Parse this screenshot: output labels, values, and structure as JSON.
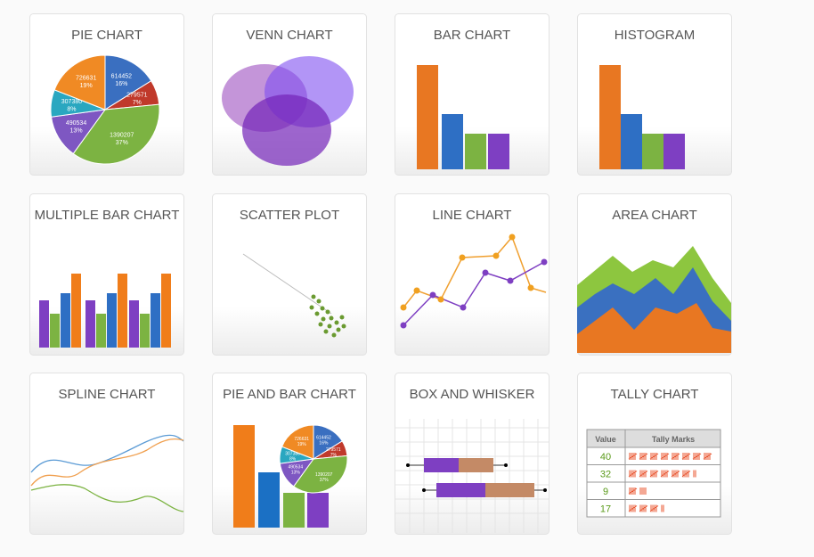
{
  "cards": [
    "PIE CHART",
    "VENN CHART",
    "BAR CHART",
    "HISTOGRAM",
    "MULTIPLE BAR CHART",
    "SCATTER PLOT",
    "LINE CHART",
    "AREA CHART",
    "SPLINE CHART",
    "PIE AND BAR CHART",
    "BOX AND WHISKER",
    "TALLY CHART"
  ],
  "pie": {
    "values": [
      614452,
      279571,
      1390207,
      490534,
      307380,
      726631
    ],
    "percent_labels": [
      "16%",
      "7%",
      "37%",
      "13%",
      "8%",
      "19%"
    ],
    "colors": [
      "#3a6fc0",
      "#c0392b",
      "#7cb342",
      "#7e57c2",
      "#2aa7c0",
      "#f08a24"
    ]
  },
  "tally": {
    "header": [
      "Value",
      "Tally Marks"
    ],
    "values": [
      40,
      32,
      9,
      17
    ]
  }
}
